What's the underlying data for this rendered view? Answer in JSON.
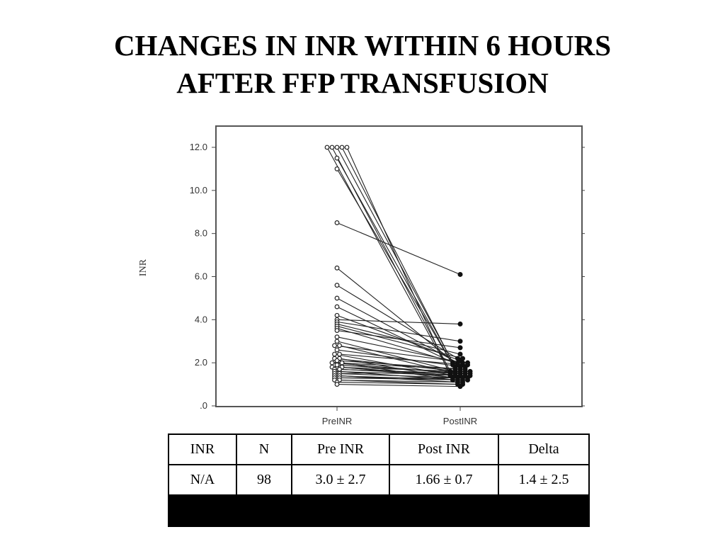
{
  "slide": {
    "title_line1": "CHANGES IN INR WITHIN 6 HOURS",
    "title_line2": "AFTER FFP TRANSFUSION"
  },
  "chart_data": {
    "type": "scatter",
    "ylabel": "INR",
    "ylim": [
      0,
      13
    ],
    "yticks": [
      0,
      2,
      4,
      6,
      8,
      10,
      12
    ],
    "ytick_labels": [
      ".0",
      "2.0",
      "4.0",
      "6.0",
      "8.0",
      "10.0",
      "12.0"
    ],
    "categories": [
      "PreINR",
      "PostINR"
    ],
    "grid": false,
    "series": [
      {
        "values": [
          [
            12.0,
            1.5
          ],
          [
            12.0,
            1.6
          ],
          [
            12.0,
            1.8
          ],
          [
            12.0,
            2.0
          ],
          [
            12.0,
            1.4
          ],
          [
            11.5,
            1.7
          ],
          [
            11.0,
            1.9
          ],
          [
            8.5,
            6.1
          ],
          [
            6.4,
            1.8
          ],
          [
            5.6,
            2.2
          ],
          [
            5.0,
            2.0
          ],
          [
            4.6,
            1.9
          ],
          [
            4.2,
            2.1
          ],
          [
            4.0,
            3.8
          ],
          [
            3.9,
            3.0
          ],
          [
            3.8,
            2.4
          ],
          [
            3.7,
            2.2
          ],
          [
            3.6,
            1.9
          ],
          [
            3.5,
            2.7
          ],
          [
            3.2,
            2.0
          ],
          [
            3.0,
            1.6
          ],
          [
            2.8,
            2.0
          ],
          [
            2.8,
            1.5
          ],
          [
            2.6,
            1.8
          ],
          [
            2.4,
            1.4
          ],
          [
            2.4,
            1.9
          ],
          [
            2.2,
            1.6
          ],
          [
            2.2,
            1.3
          ],
          [
            2.0,
            1.5
          ],
          [
            2.0,
            1.7
          ],
          [
            2.0,
            1.2
          ],
          [
            1.8,
            1.6
          ],
          [
            1.8,
            1.4
          ],
          [
            1.8,
            1.3
          ],
          [
            1.7,
            1.5
          ],
          [
            1.6,
            1.4
          ],
          [
            1.6,
            1.2
          ],
          [
            1.5,
            1.3
          ],
          [
            1.5,
            1.6
          ],
          [
            1.4,
            1.2
          ],
          [
            1.4,
            1.1
          ],
          [
            1.3,
            1.3
          ],
          [
            1.3,
            1.2
          ],
          [
            1.2,
            1.1
          ],
          [
            1.2,
            1.0
          ],
          [
            1.1,
            1.0
          ],
          [
            1.0,
            0.9
          ],
          [
            1.9,
            1.5
          ],
          [
            2.1,
            1.7
          ],
          [
            1.7,
            1.4
          ]
        ]
      }
    ]
  },
  "table": {
    "headers": [
      "INR",
      "N",
      "Pre INR",
      "Post INR",
      "Delta"
    ],
    "row": [
      "N/A",
      "98",
      "3.0 ± 2.7",
      "1.66 ± 0.7",
      "1.4 ± 2.5"
    ]
  }
}
